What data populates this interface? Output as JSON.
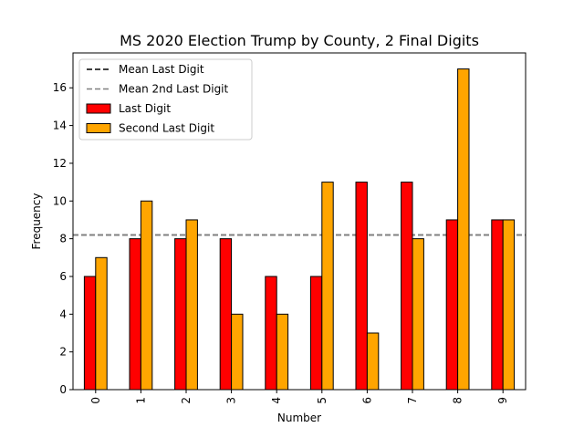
{
  "chart_data": {
    "type": "bar",
    "title": "MS 2020 Election Trump by County, 2 Final Digits",
    "xlabel": "Number",
    "ylabel": "Frequency",
    "categories": [
      "0",
      "1",
      "2",
      "3",
      "4",
      "5",
      "6",
      "7",
      "8",
      "9"
    ],
    "series": [
      {
        "name": "Last Digit",
        "color": "#ff0000",
        "values": [
          6,
          8,
          8,
          8,
          6,
          6,
          11,
          11,
          9,
          9
        ]
      },
      {
        "name": "Second Last Digit",
        "color": "#ffa500",
        "values": [
          7,
          10,
          9,
          4,
          4,
          11,
          3,
          8,
          17,
          9
        ]
      }
    ],
    "reference_lines": [
      {
        "name": "Mean Last Digit",
        "value": 8.2,
        "color": "#000000",
        "style": "dashed"
      },
      {
        "name": "Mean 2nd Last Digit",
        "value": 8.2,
        "color": "#808080",
        "style": "dashed"
      }
    ],
    "ylim": [
      0,
      17.85
    ],
    "yticks": [
      0,
      2,
      4,
      6,
      8,
      10,
      12,
      14,
      16
    ],
    "grid": false,
    "legend_position": "top-left",
    "x_tick_rotation": "vertical"
  }
}
